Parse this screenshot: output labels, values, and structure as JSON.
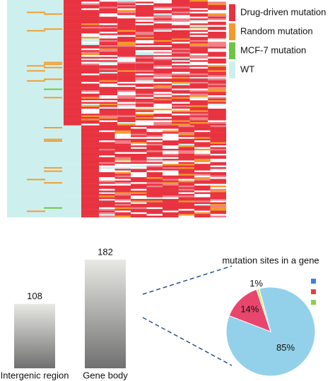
{
  "chart_data": [
    {
      "type": "heatmap",
      "series": [
        {
          "name": "Drug-driven mutation",
          "color": "#e8323f"
        },
        {
          "name": "Random mutation",
          "color": "#f39a2c"
        },
        {
          "name": "MCF-7 mutation",
          "color": "#6cc644"
        },
        {
          "name": "WT",
          "color": "#cdf0ee"
        }
      ]
    },
    {
      "type": "bar",
      "categories": [
        "Intergenic region",
        "Gene body"
      ],
      "values": [
        108,
        182
      ],
      "value_labels": [
        "108",
        "182"
      ]
    },
    {
      "type": "pie",
      "title": "mutation sites in a gene",
      "values": [
        85,
        14,
        1
      ],
      "value_labels": [
        "85%",
        "14%",
        "1%"
      ],
      "colors": [
        "#93d1ea",
        "#e8466d",
        "#e3ec73"
      ],
      "legend_colors": [
        "#3b82d6",
        "#e8403f",
        "#8bd14a"
      ]
    }
  ]
}
